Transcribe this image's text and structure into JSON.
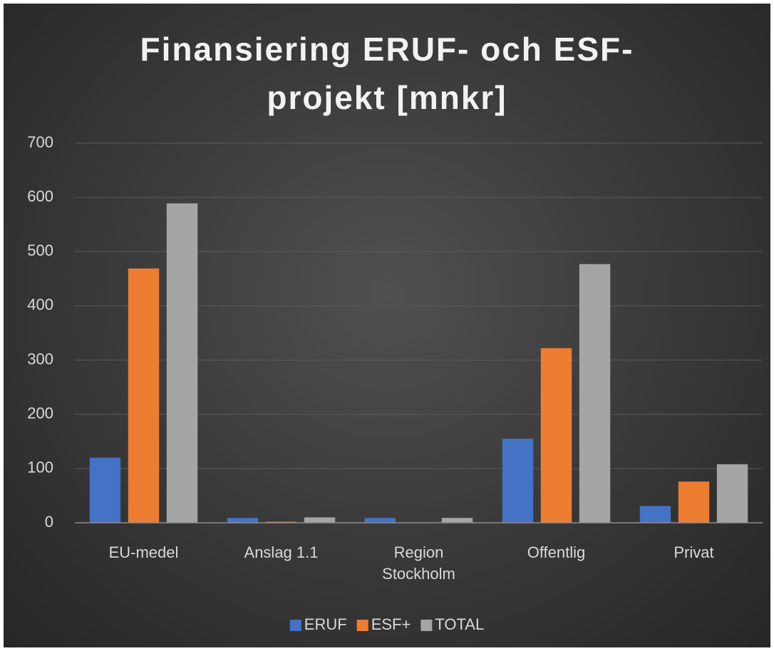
{
  "chart_data": {
    "type": "bar",
    "title": "Finansiering ERUF- och ESF-projekt [mnkr]",
    "categories": [
      "EU-medel",
      "Anslag 1.1",
      "Region Stockholm",
      "Offentlig",
      "Privat"
    ],
    "series": [
      {
        "name": "ERUF",
        "color": "#4472c4",
        "values": [
          120,
          9,
          9,
          155,
          31
        ]
      },
      {
        "name": "ESF+",
        "color": "#ed7d31",
        "values": [
          469,
          2,
          0,
          322,
          76
        ]
      },
      {
        "name": "TOTAL",
        "color": "#a5a5a5",
        "values": [
          589,
          10,
          9,
          477,
          108
        ]
      }
    ],
    "ylim": [
      0,
      700
    ],
    "yticks": [
      0,
      100,
      200,
      300,
      400,
      500,
      600,
      700
    ],
    "grid": true,
    "legend": "bottom"
  }
}
